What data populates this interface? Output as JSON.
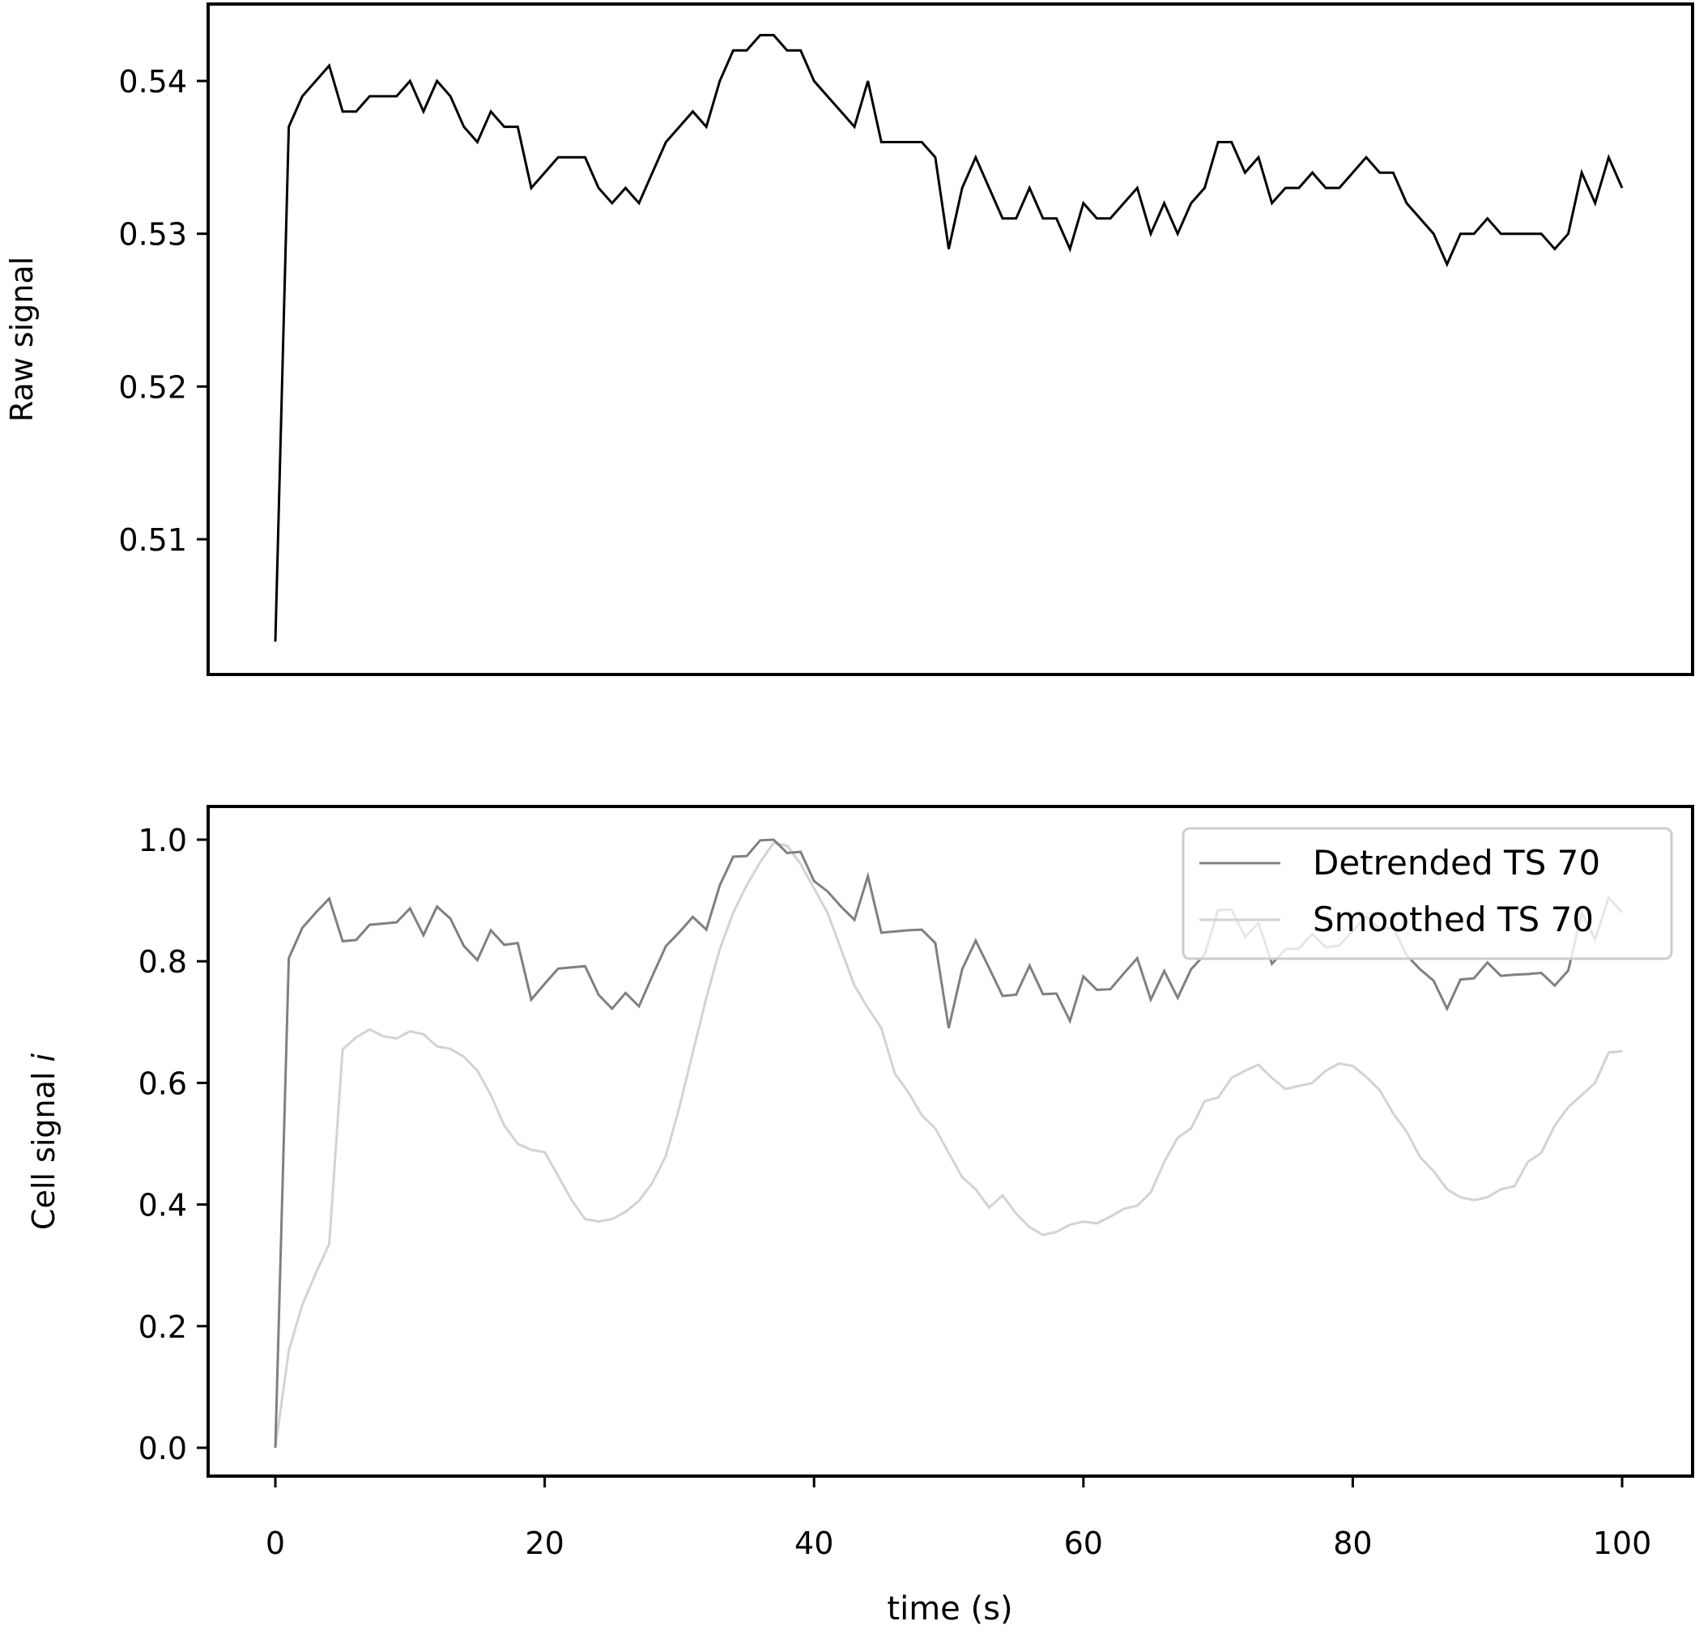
{
  "chart_data": [
    {
      "type": "line",
      "xlabel": "",
      "ylabel": "Raw signal",
      "xlim": [
        -5,
        105
      ],
      "ylim": [
        0.5013,
        0.5452
      ],
      "y_ticks": [
        0.51,
        0.52,
        0.53,
        0.54
      ],
      "y_tick_labels": [
        "0.51",
        "0.52",
        "0.53",
        "0.54"
      ],
      "x_tick_labels_shown": false,
      "grid": false,
      "series": [
        {
          "color": "#000000",
          "x": [
            0,
            1,
            2,
            3,
            4,
            5,
            6,
            7,
            8,
            9,
            10,
            11,
            12,
            13,
            14,
            15,
            16,
            17,
            18,
            19,
            20,
            21,
            22,
            23,
            24,
            25,
            26,
            27,
            28,
            29,
            30,
            31,
            32,
            33,
            34,
            35,
            36,
            37,
            38,
            39,
            40,
            41,
            42,
            43,
            44,
            45,
            46,
            47,
            48,
            49,
            50,
            51,
            52,
            53,
            54,
            55,
            56,
            57,
            58,
            59,
            60,
            61,
            62,
            63,
            64,
            65,
            66,
            67,
            68,
            69,
            70,
            71,
            72,
            73,
            74,
            75,
            76,
            77,
            78,
            79,
            80,
            81,
            82,
            83,
            84,
            85,
            86,
            87,
            88,
            89,
            90,
            91,
            92,
            93,
            94,
            95,
            96,
            97,
            98,
            99,
            100
          ],
          "y": [
            0.5033,
            0.537,
            0.539,
            0.54,
            0.541,
            0.538,
            0.538,
            0.539,
            0.539,
            0.539,
            0.54,
            0.538,
            0.54,
            0.539,
            0.537,
            0.536,
            0.538,
            0.537,
            0.537,
            0.533,
            0.534,
            0.535,
            0.535,
            0.535,
            0.533,
            0.532,
            0.533,
            0.532,
            0.534,
            0.536,
            0.537,
            0.538,
            0.537,
            0.54,
            0.542,
            0.542,
            0.543,
            0.543,
            0.542,
            0.542,
            0.54,
            0.539,
            0.538,
            0.537,
            0.54,
            0.536,
            0.536,
            0.536,
            0.536,
            0.535,
            0.529,
            0.533,
            0.535,
            0.533,
            0.531,
            0.531,
            0.533,
            0.531,
            0.531,
            0.529,
            0.532,
            0.531,
            0.531,
            0.532,
            0.533,
            0.53,
            0.532,
            0.53,
            0.532,
            0.533,
            0.536,
            0.536,
            0.534,
            0.535,
            0.532,
            0.533,
            0.533,
            0.534,
            0.533,
            0.533,
            0.534,
            0.535,
            0.534,
            0.534,
            0.532,
            0.531,
            0.53,
            0.528,
            0.53,
            0.53,
            0.531,
            0.53,
            0.53,
            0.53,
            0.53,
            0.529,
            0.53,
            0.534,
            0.532,
            0.535,
            0.533
          ]
        }
      ]
    },
    {
      "type": "line",
      "xlabel": "time (s)",
      "ylabel": "Cell signal ",
      "ylabel_italic": "i",
      "xlim": [
        -5,
        105
      ],
      "ylim": [
        -0.05,
        1.05
      ],
      "x_ticks": [
        0,
        20,
        40,
        60,
        80,
        100
      ],
      "x_tick_labels": [
        "0",
        "20",
        "40",
        "60",
        "80",
        "100"
      ],
      "y_ticks": [
        0.0,
        0.2,
        0.4,
        0.6,
        0.8,
        1.0
      ],
      "y_tick_labels": [
        "0.0",
        "0.2",
        "0.4",
        "0.6",
        "0.8",
        "1.0"
      ],
      "grid": false,
      "legend_position": "top-right",
      "series": [
        {
          "name": "Detrended TS 70",
          "color": "#808080",
          "x": [
            0,
            1,
            2,
            3,
            4,
            5,
            6,
            7,
            8,
            9,
            10,
            11,
            12,
            13,
            14,
            15,
            16,
            17,
            18,
            19,
            20,
            21,
            22,
            23,
            24,
            25,
            26,
            27,
            28,
            29,
            30,
            31,
            32,
            33,
            34,
            35,
            36,
            37,
            38,
            39,
            40,
            41,
            42,
            43,
            44,
            45,
            46,
            47,
            48,
            49,
            50,
            51,
            52,
            53,
            54,
            55,
            56,
            57,
            58,
            59,
            60,
            61,
            62,
            63,
            64,
            65,
            66,
            67,
            68,
            69,
            70,
            71,
            72,
            73,
            74,
            75,
            76,
            77,
            78,
            79,
            80,
            81,
            82,
            83,
            84,
            85,
            86,
            87,
            88,
            89,
            90,
            91,
            92,
            93,
            94,
            95,
            96,
            97,
            98,
            99,
            100
          ],
          "y": [
            0.0,
            0.805,
            0.855,
            0.88,
            0.903,
            0.833,
            0.835,
            0.86,
            0.862,
            0.864,
            0.887,
            0.843,
            0.89,
            0.87,
            0.825,
            0.802,
            0.851,
            0.827,
            0.83,
            0.737,
            0.763,
            0.788,
            0.79,
            0.792,
            0.745,
            0.722,
            0.748,
            0.726,
            0.776,
            0.825,
            0.848,
            0.873,
            0.852,
            0.925,
            0.972,
            0.973,
            0.999,
            1.0,
            0.978,
            0.98,
            0.932,
            0.915,
            0.89,
            0.868,
            0.94,
            0.847,
            0.849,
            0.851,
            0.852,
            0.83,
            0.69,
            0.787,
            0.834,
            0.789,
            0.743,
            0.745,
            0.793,
            0.746,
            0.747,
            0.702,
            0.775,
            0.753,
            0.754,
            0.78,
            0.805,
            0.737,
            0.784,
            0.74,
            0.787,
            0.811,
            0.884,
            0.885,
            0.84,
            0.863,
            0.796,
            0.82,
            0.821,
            0.845,
            0.823,
            0.826,
            0.85,
            0.874,
            0.853,
            0.855,
            0.81,
            0.787,
            0.768,
            0.722,
            0.77,
            0.772,
            0.798,
            0.776,
            0.778,
            0.779,
            0.781,
            0.76,
            0.785,
            0.88,
            0.836,
            0.905,
            0.88
          ]
        },
        {
          "name": "Smoothed TS 70",
          "color": "#d3d3d3",
          "x": [
            0,
            1,
            2,
            3,
            4,
            5,
            6,
            7,
            8,
            9,
            10,
            11,
            12,
            13,
            14,
            15,
            16,
            17,
            18,
            19,
            20,
            21,
            22,
            23,
            24,
            25,
            26,
            27,
            28,
            29,
            30,
            31,
            32,
            33,
            34,
            35,
            36,
            37,
            38,
            39,
            40,
            41,
            42,
            43,
            44,
            45,
            46,
            47,
            48,
            49,
            50,
            51,
            52,
            53,
            54,
            55,
            56,
            57,
            58,
            59,
            60,
            61,
            62,
            63,
            64,
            65,
            66,
            67,
            68,
            69,
            70,
            71,
            72,
            73,
            74,
            75,
            76,
            77,
            78,
            79,
            80,
            81,
            82,
            83,
            84,
            85,
            86,
            87,
            88,
            89,
            90,
            91,
            92,
            93,
            94,
            95,
            96,
            97,
            98,
            99,
            100
          ],
          "y": [
            0.0,
            0.16,
            0.235,
            0.287,
            0.335,
            0.655,
            0.675,
            0.688,
            0.677,
            0.673,
            0.685,
            0.68,
            0.66,
            0.656,
            0.643,
            0.62,
            0.58,
            0.53,
            0.5,
            0.49,
            0.486,
            0.447,
            0.407,
            0.376,
            0.372,
            0.376,
            0.388,
            0.406,
            0.436,
            0.48,
            0.56,
            0.65,
            0.74,
            0.82,
            0.88,
            0.925,
            0.963,
            0.995,
            0.99,
            0.96,
            0.92,
            0.88,
            0.82,
            0.76,
            0.723,
            0.69,
            0.615,
            0.585,
            0.547,
            0.525,
            0.485,
            0.445,
            0.425,
            0.395,
            0.415,
            0.385,
            0.363,
            0.35,
            0.355,
            0.367,
            0.372,
            0.369,
            0.38,
            0.393,
            0.398,
            0.42,
            0.47,
            0.51,
            0.525,
            0.57,
            0.576,
            0.608,
            0.62,
            0.63,
            0.608,
            0.59,
            0.595,
            0.6,
            0.62,
            0.632,
            0.628,
            0.61,
            0.588,
            0.55,
            0.52,
            0.478,
            0.455,
            0.425,
            0.412,
            0.407,
            0.412,
            0.425,
            0.43,
            0.47,
            0.485,
            0.53,
            0.56,
            0.58,
            0.6,
            0.65,
            0.652
          ]
        }
      ]
    }
  ]
}
